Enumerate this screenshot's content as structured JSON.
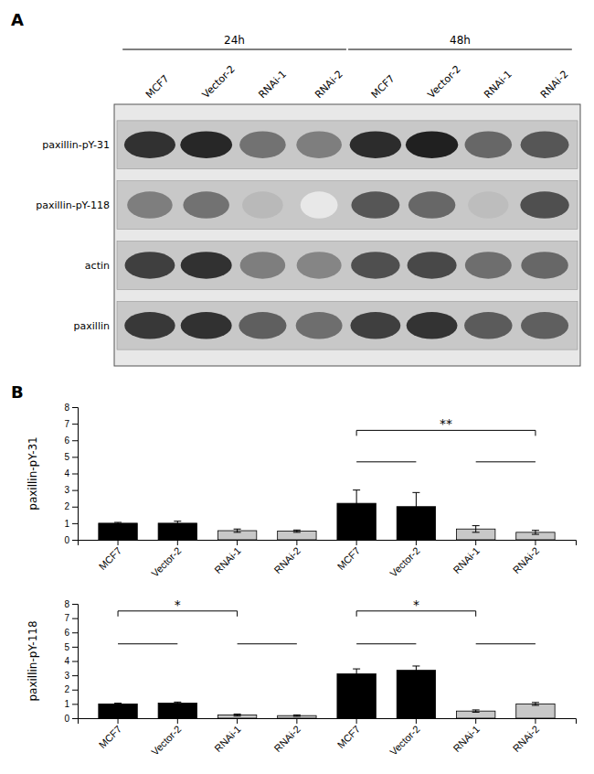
{
  "chart_data": [
    {
      "type": "heatmap",
      "title": "A",
      "categories": [
        "MCF7",
        "Vector-2",
        "RNAi-1",
        "RNAi-2",
        "MCF7",
        "Vector-2",
        "RNAi-1",
        "RNAi-2"
      ],
      "series": [
        {
          "name": "paxillin-pY-31",
          "values": [
            0.88,
            0.92,
            0.6,
            0.55,
            0.9,
            0.95,
            0.65,
            0.72
          ]
        },
        {
          "name": "paxillin-pY-118",
          "values": [
            0.55,
            0.6,
            0.3,
            0.1,
            0.72,
            0.65,
            0.28,
            0.75
          ]
        },
        {
          "name": "actin",
          "values": [
            0.82,
            0.88,
            0.55,
            0.52,
            0.75,
            0.78,
            0.62,
            0.65
          ]
        },
        {
          "name": "paxillin",
          "values": [
            0.85,
            0.88,
            0.68,
            0.62,
            0.82,
            0.87,
            0.7,
            0.68
          ]
        }
      ],
      "annotations": [
        {
          "text": "24h",
          "x": [
            0,
            3
          ]
        },
        {
          "text": "48h",
          "x": [
            4,
            7
          ]
        }
      ]
    },
    {
      "type": "bar",
      "title": "B",
      "ylabel": "paxillin-pY-31",
      "categories": [
        "MCF7",
        "Vector-2",
        "RNAi-1",
        "RNAi-2",
        "MCF7",
        "Vector-2",
        "RNAi-1",
        "RNAi-2"
      ],
      "values": [
        1.0,
        1.0,
        0.55,
        0.52,
        2.2,
        2.0,
        0.65,
        0.45
      ],
      "errors": [
        0.05,
        0.12,
        0.1,
        0.07,
        0.8,
        0.85,
        0.2,
        0.12
      ],
      "colors": [
        "black",
        "black",
        "#c8c8c8",
        "#c8c8c8",
        "black",
        "black",
        "#c8c8c8",
        "#c8c8c8"
      ],
      "ylim": [
        0,
        8
      ],
      "yticks": [
        0,
        1,
        2,
        3,
        4,
        5,
        6,
        7,
        8
      ],
      "grid": false,
      "annotations": [
        {
          "text": "**",
          "x": [
            4,
            7
          ],
          "y": 6.6
        },
        {
          "x": [
            4,
            5
          ],
          "y": 4.7
        },
        {
          "x": [
            6,
            7
          ],
          "y": 4.7
        }
      ]
    },
    {
      "type": "bar",
      "ylabel": "paxillin-pY-118",
      "categories": [
        "MCF7",
        "Vector-2",
        "RNAi-1",
        "RNAi-2",
        "MCF7",
        "Vector-2",
        "RNAi-1",
        "RNAi-2"
      ],
      "values": [
        1.0,
        1.05,
        0.22,
        0.18,
        3.1,
        3.35,
        0.5,
        1.0
      ],
      "errors": [
        0.05,
        0.08,
        0.07,
        0.05,
        0.35,
        0.3,
        0.08,
        0.1
      ],
      "colors": [
        "black",
        "black",
        "#c8c8c8",
        "#c8c8c8",
        "black",
        "black",
        "#c8c8c8",
        "#c8c8c8"
      ],
      "ylim": [
        0,
        8
      ],
      "yticks": [
        0,
        1,
        2,
        3,
        4,
        5,
        6,
        7,
        8
      ],
      "grid": false,
      "annotations": [
        {
          "text": "*",
          "x": [
            0,
            2
          ],
          "y": 7.5
        },
        {
          "text": "*",
          "x": [
            4,
            6
          ],
          "y": 7.5
        },
        {
          "x": [
            0,
            1
          ],
          "y": 5.2
        },
        {
          "x": [
            2,
            3
          ],
          "y": 5.2
        },
        {
          "x": [
            4,
            5
          ],
          "y": 5.2
        },
        {
          "x": [
            6,
            7
          ],
          "y": 5.2
        }
      ]
    }
  ]
}
